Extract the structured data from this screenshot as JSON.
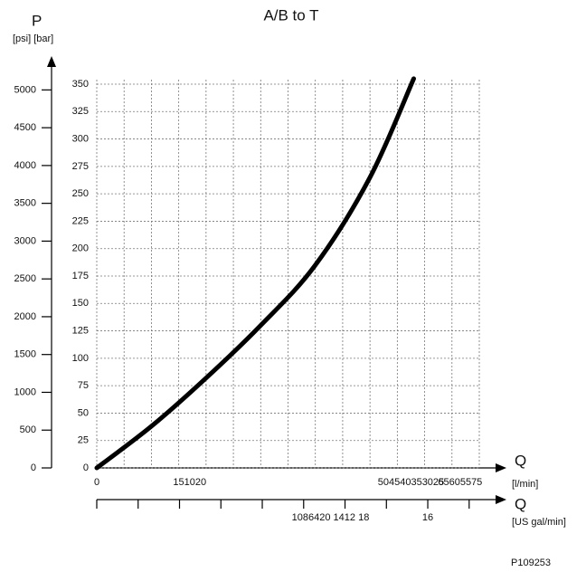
{
  "chart_data": {
    "type": "line",
    "title": "A/B  to T",
    "y_label": "P",
    "y_units": "[psi] [bar]",
    "x_label": "Q",
    "x_units": "[l/min]",
    "x2_label": "Q",
    "x2_units": "[US gal/min]",
    "footer": "P109253",
    "x": [
      0,
      10,
      20,
      30,
      40,
      50,
      58
    ],
    "series": [
      {
        "name": "A/B to T",
        "color": "#000000",
        "values": [
          0,
          38,
          82,
          130,
          185,
          265,
          355
        ]
      }
    ],
    "xlim": [
      0,
      70
    ],
    "xgrid": [
      0,
      5,
      10,
      15,
      20,
      25,
      30,
      35,
      40,
      45,
      50,
      55,
      60,
      65,
      70
    ],
    "xticks": [
      {
        "value": 0,
        "label": "0"
      },
      {
        "value": 17,
        "label": "151020"
      },
      {
        "value": 57.5,
        "label": "504540353025"
      },
      {
        "value": 66.5,
        "label": "65605575"
      }
    ],
    "ylim": [
      0,
      350
    ],
    "yticks": [
      0,
      25,
      50,
      75,
      100,
      125,
      150,
      175,
      200,
      225,
      250,
      275,
      300,
      325,
      350
    ],
    "y2lim": [
      0,
      5076
    ],
    "y2ticks": [
      0,
      500,
      1000,
      1500,
      2000,
      2500,
      3000,
      3500,
      4000,
      4500,
      5000
    ],
    "x2lim": [
      0,
      18.49
    ],
    "x2tick_marks": [
      0,
      2,
      4,
      6,
      8,
      10,
      12,
      14,
      16,
      18
    ],
    "x2ticks": [
      {
        "value": 11.3,
        "label": "1086420 1412 18"
      },
      {
        "value": 16,
        "label": "16"
      }
    ],
    "grid": true
  }
}
